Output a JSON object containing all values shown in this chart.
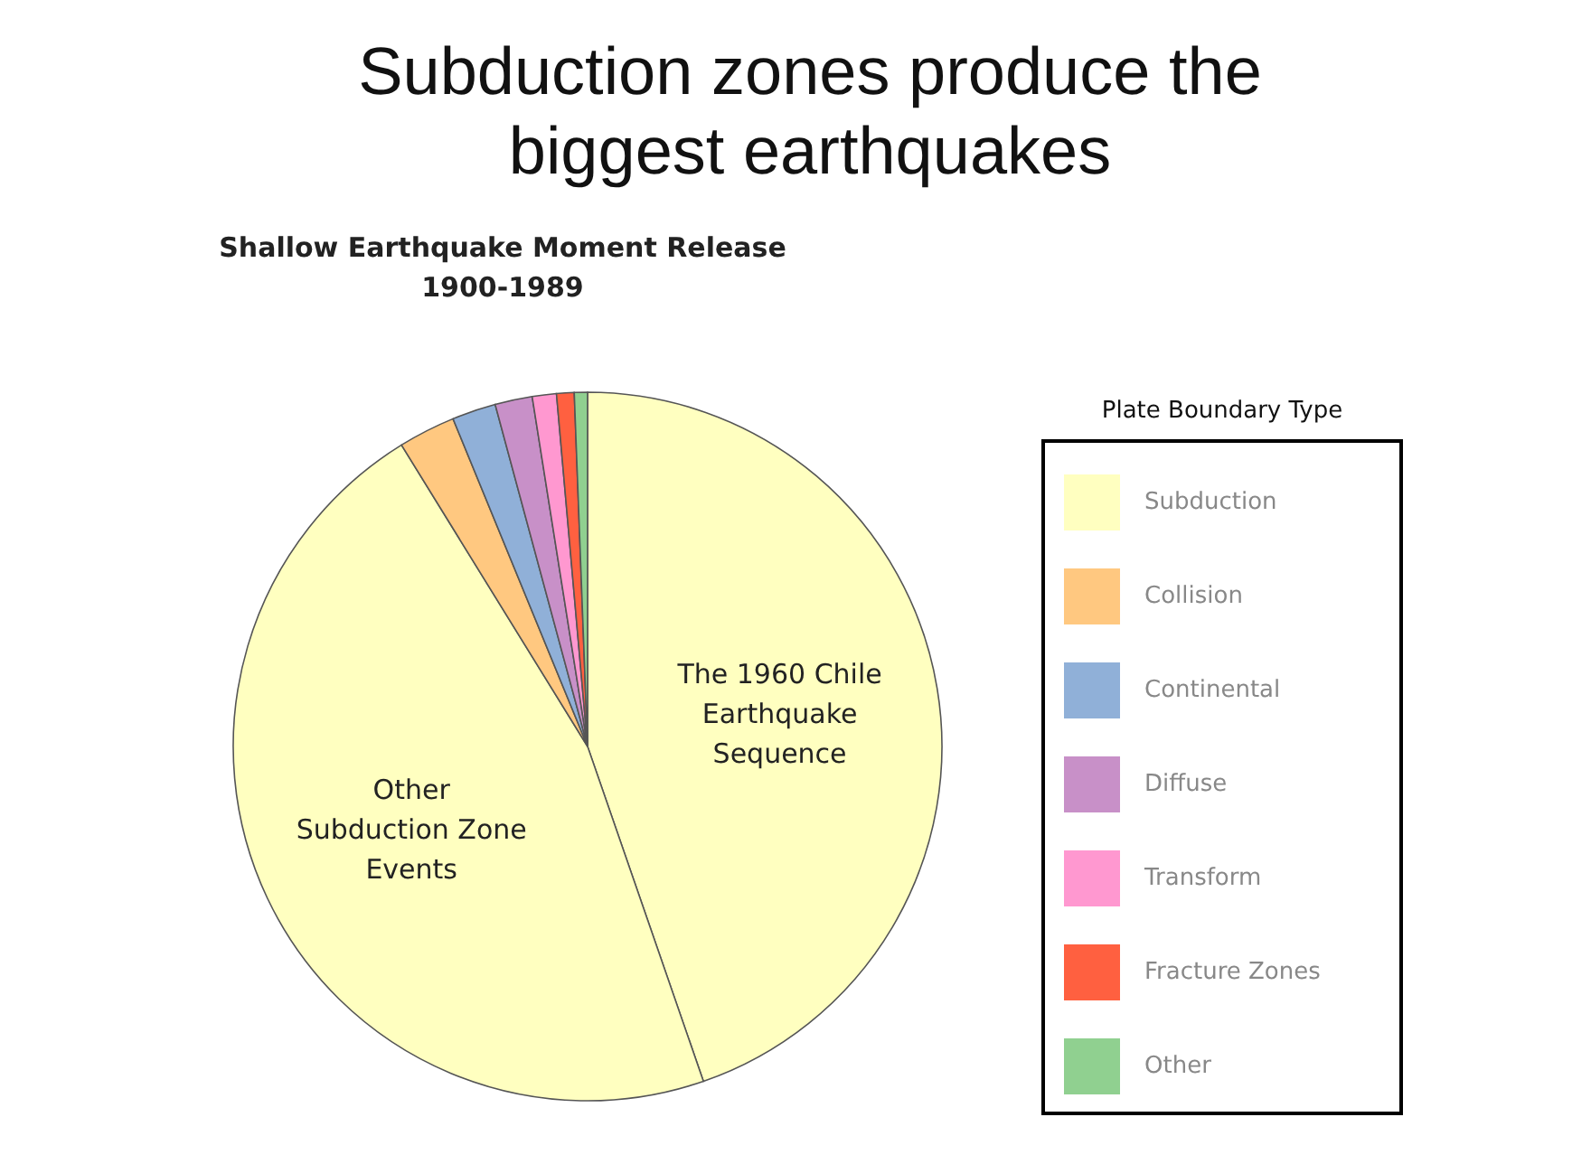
{
  "chart_data": {
    "type": "pie",
    "title": "Subduction zones produce the biggest earthquakes",
    "subtitle": "Shallow Earthquake Moment Release\n1900-1989",
    "legend_title": "Plate Boundary Type",
    "legend": "right",
    "categories": [
      "The 1960 Chile Earthquake Sequence",
      "Other Subduction Zone Events",
      "Collision",
      "Continental",
      "Diffuse",
      "Transform",
      "Fracture Zones",
      "Other"
    ],
    "values": [
      44.7,
      46.5,
      2.6,
      2.0,
      1.7,
      1.1,
      0.8,
      0.6
    ],
    "colors": [
      "#ffffc0",
      "#ffffc0",
      "#ffc880",
      "#90b0d8",
      "#c890c8",
      "#ff98d0",
      "#ff6040",
      "#90d090"
    ],
    "annotations": [
      "Subduction"
    ]
  }
}
